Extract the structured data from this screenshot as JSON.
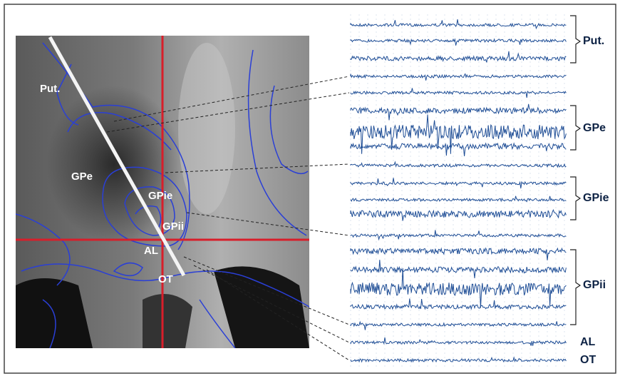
{
  "image_labels": [
    "Put.",
    "GPe",
    "GPie",
    "GPii",
    "AL",
    "OT"
  ],
  "trace_groups": [
    "Put.",
    "GPe",
    "GPie",
    "GPii",
    "AL",
    "OT"
  ]
}
